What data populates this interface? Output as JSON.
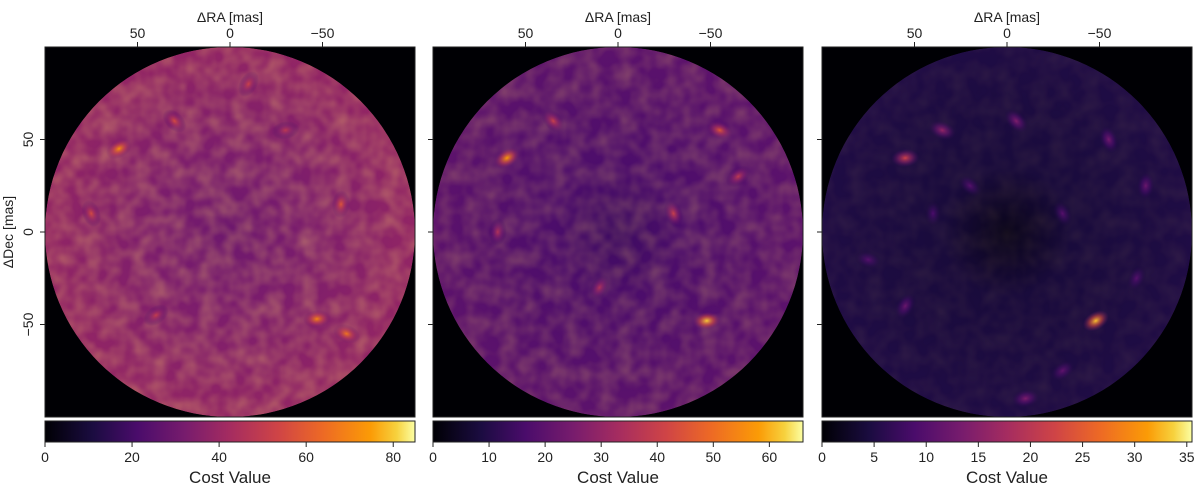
{
  "chart_data": [
    {
      "type": "heatmap",
      "panel": "left",
      "xlabel": "ΔRA [mas]",
      "ylabel": "ΔDec [mas]",
      "xticks": [
        50,
        0,
        -50
      ],
      "xtick_labels": [
        "50",
        "0",
        "−50"
      ],
      "yticks": [
        50,
        0,
        -50
      ],
      "ytick_labels": [
        "50",
        "0",
        "−50"
      ],
      "xlim": [
        100,
        -100
      ],
      "ylim": [
        -100,
        100
      ],
      "field_radius": 100,
      "colormap": "inferno",
      "colorbar": {
        "label": "Cost Value",
        "range": [
          0,
          85
        ],
        "ticks": [
          0,
          20,
          40,
          60,
          80
        ],
        "tick_labels": [
          "0",
          "20",
          "40",
          "60",
          "80"
        ]
      },
      "peaks": [
        {
          "x": 60,
          "y": 45,
          "value": 72
        },
        {
          "x": -47,
          "y": -47,
          "value": 70
        },
        {
          "x": -63,
          "y": -55,
          "value": 66
        },
        {
          "x": 30,
          "y": 60,
          "value": 55
        },
        {
          "x": 75,
          "y": 10,
          "value": 55
        },
        {
          "x": -60,
          "y": 15,
          "value": 58
        },
        {
          "x": -10,
          "y": 80,
          "value": 52
        },
        {
          "x": 40,
          "y": -45,
          "value": 50
        },
        {
          "x": -30,
          "y": 55,
          "value": 48
        }
      ]
    },
    {
      "type": "heatmap",
      "panel": "middle",
      "xlabel": "ΔRA [mas]",
      "xticks": [
        50,
        0,
        -50
      ],
      "xtick_labels": [
        "50",
        "0",
        "−50"
      ],
      "yticks": [
        50,
        0,
        -50
      ],
      "xlim": [
        100,
        -100
      ],
      "ylim": [
        -100,
        100
      ],
      "field_radius": 100,
      "colormap": "inferno",
      "colorbar": {
        "label": "Cost Value",
        "range": [
          0,
          66
        ],
        "ticks": [
          0,
          10,
          20,
          30,
          40,
          50,
          60
        ],
        "tick_labels": [
          "0",
          "10",
          "20",
          "30",
          "40",
          "50",
          "60"
        ]
      },
      "peaks": [
        {
          "x": 60,
          "y": 40,
          "value": 58
        },
        {
          "x": -48,
          "y": -48,
          "value": 62
        },
        {
          "x": -55,
          "y": 55,
          "value": 45
        },
        {
          "x": 35,
          "y": 60,
          "value": 40
        },
        {
          "x": -30,
          "y": 10,
          "value": 40
        },
        {
          "x": 65,
          "y": 0,
          "value": 35
        },
        {
          "x": 10,
          "y": -30,
          "value": 35
        },
        {
          "x": -65,
          "y": 30,
          "value": 38
        }
      ]
    },
    {
      "type": "heatmap",
      "panel": "right",
      "xlabel": "ΔRA [mas]",
      "xticks": [
        50,
        0,
        -50
      ],
      "xtick_labels": [
        "50",
        "0",
        "−50"
      ],
      "yticks": [
        50,
        0,
        -50
      ],
      "xlim": [
        100,
        -100
      ],
      "ylim": [
        -100,
        100
      ],
      "field_radius": 100,
      "colormap": "inferno",
      "colorbar": {
        "label": "Cost Value",
        "range": [
          0,
          35.5
        ],
        "ticks": [
          0,
          5,
          10,
          15,
          20,
          25,
          30,
          35
        ],
        "tick_labels": [
          "0",
          "5",
          "10",
          "15",
          "20",
          "25",
          "30",
          "35"
        ]
      },
      "peaks": [
        {
          "x": -48,
          "y": -48,
          "value": 33
        },
        {
          "x": 55,
          "y": 40,
          "value": 22
        },
        {
          "x": 35,
          "y": 55,
          "value": 16
        },
        {
          "x": -5,
          "y": 60,
          "value": 14
        },
        {
          "x": -55,
          "y": 50,
          "value": 13
        },
        {
          "x": -75,
          "y": 25,
          "value": 12
        },
        {
          "x": 55,
          "y": -40,
          "value": 12
        },
        {
          "x": -30,
          "y": -75,
          "value": 11
        },
        {
          "x": -10,
          "y": -90,
          "value": 14
        },
        {
          "x": 75,
          "y": -15,
          "value": 10
        },
        {
          "x": 20,
          "y": 25,
          "value": 10
        },
        {
          "x": -30,
          "y": 10,
          "value": 10
        },
        {
          "x": 40,
          "y": 10,
          "value": 9
        },
        {
          "x": -70,
          "y": -25,
          "value": 10
        }
      ]
    }
  ]
}
